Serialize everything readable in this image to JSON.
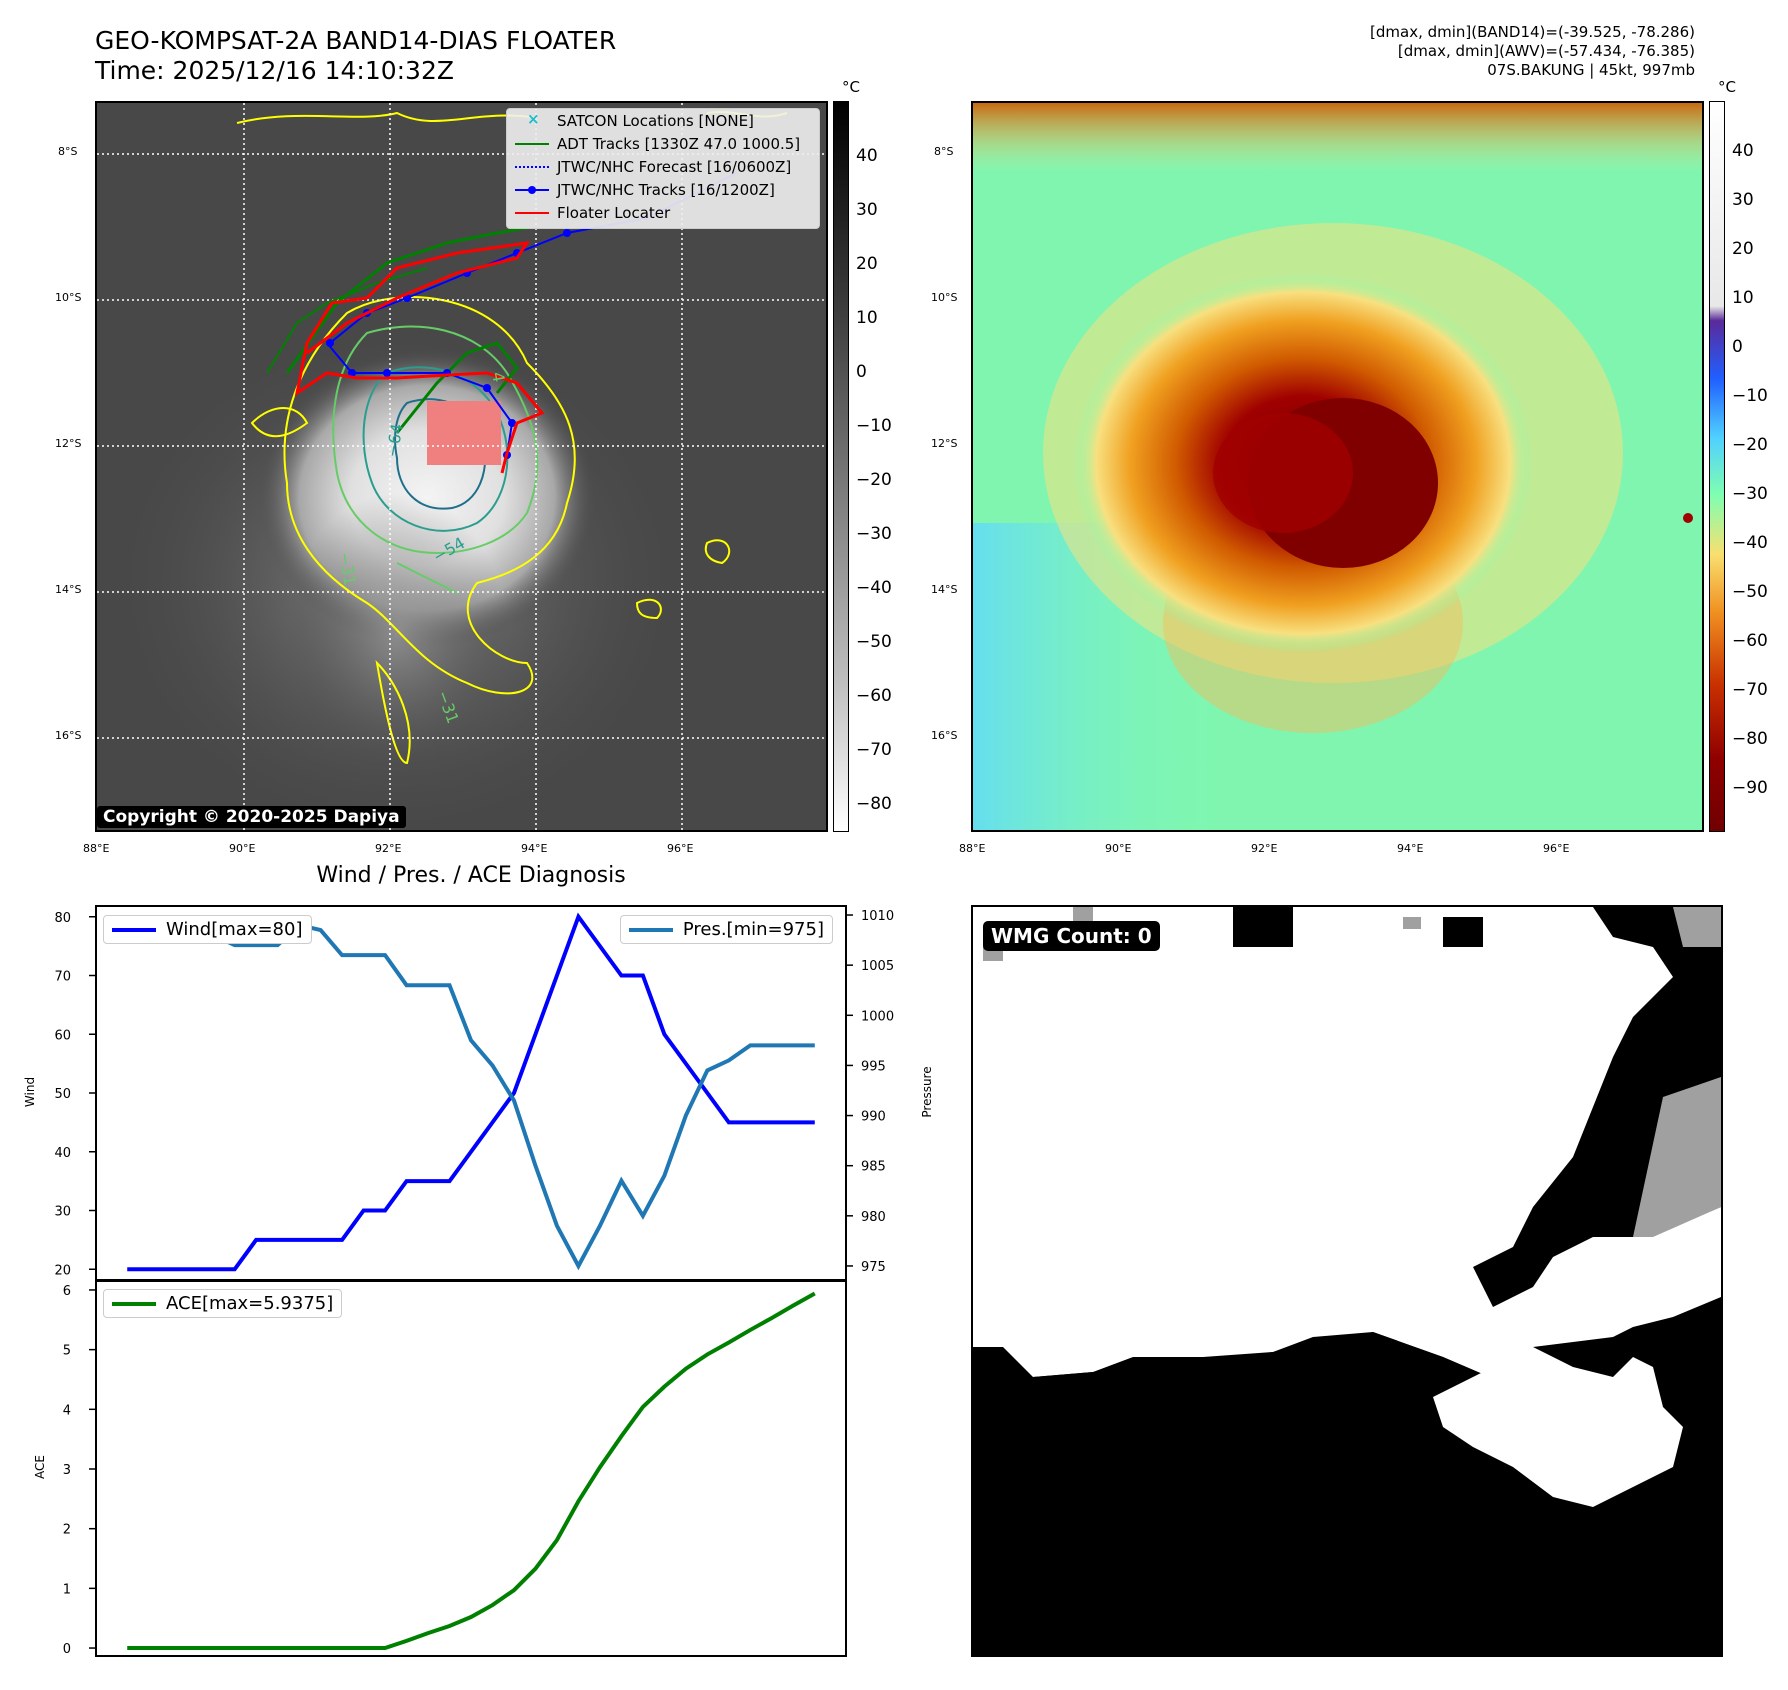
{
  "header": {
    "title_line1": "GEO-KOMPSAT-2A BAND14-DIAS FLOATER",
    "title_line2": "Time: 2025/12/16 14:10:32Z",
    "info_line1": "[dmax, dmin](BAND14)=(-39.525, -78.286)",
    "info_line2": "[dmax, dmin](AWV)=(-57.434, -76.385)",
    "info_line3": "07S.BAKUNG | 45kt, 997mb"
  },
  "map_left": {
    "lat_labels": [
      "8°S",
      "10°S",
      "12°S",
      "14°S",
      "16°S"
    ],
    "lon_labels": [
      "88°E",
      "90°E",
      "92°E",
      "94°E",
      "96°E"
    ],
    "colorbar_unit": "°C",
    "colorbar_ticks": [
      "40",
      "30",
      "20",
      "10",
      "0",
      "−10",
      "−20",
      "−30",
      "−40",
      "−50",
      "−60",
      "−70",
      "−80"
    ],
    "copyright": "Copyright © 2020-2025 Dapiya",
    "contour_labels": [
      "−64",
      "−54",
      "−31",
      "−31",
      "4"
    ],
    "legend": [
      {
        "label": "SATCON Locations [NONE]",
        "color": "#17becf",
        "icon": "x-marker-icon"
      },
      {
        "label": "ADT Tracks [1330Z 47.0 1000.5]",
        "color": "#008000",
        "icon": "solid-line-icon"
      },
      {
        "label": "JTWC/NHC Forecast [16/0600Z]",
        "color": "#0000ff",
        "icon": "dotted-line-icon"
      },
      {
        "label": "JTWC/NHC Tracks [16/1200Z]",
        "color": "#0000ff",
        "icon": "dot-line-icon"
      },
      {
        "label": "Floater Locater",
        "color": "#ff0000",
        "icon": "solid-line-icon"
      }
    ]
  },
  "map_right": {
    "lat_labels": [
      "8°S",
      "10°S",
      "12°S",
      "14°S",
      "16°S"
    ],
    "lon_labels": [
      "88°E",
      "90°E",
      "92°E",
      "94°E",
      "96°E"
    ],
    "colorbar_unit": "°C",
    "colorbar_ticks": [
      "40",
      "30",
      "20",
      "10",
      "0",
      "−10",
      "−20",
      "−30",
      "−40",
      "−50",
      "−60",
      "−70",
      "−80",
      "−90"
    ]
  },
  "diagnosis": {
    "title": "Wind / Pres. / ACE Diagnosis",
    "wind_legend": "Wind[max=80]",
    "pres_legend": "Pres.[min=975]",
    "ace_legend": "ACE[max=5.9375]",
    "wind_axis_label": "Wind",
    "pres_axis_label": "Pressure",
    "ace_axis_label": "ACE",
    "wind_color": "#0000ff",
    "pres_color": "#1f77b4",
    "ace_color": "#008000"
  },
  "wmg": {
    "badge": "WMG Count: 0"
  },
  "chart_data": [
    {
      "type": "line",
      "title": "Wind / Pres. / ACE Diagnosis",
      "x": [
        0,
        1,
        2,
        3,
        4,
        5,
        6,
        7,
        8,
        9,
        10,
        11,
        12,
        13,
        14,
        15,
        16,
        17,
        18,
        19,
        20,
        21,
        22,
        23,
        24,
        25,
        26,
        27,
        28,
        29,
        30,
        31,
        32
      ],
      "series": [
        {
          "name": "Wind[max=80]",
          "axis": "left",
          "values": [
            20,
            20,
            20,
            20,
            20,
            20,
            25,
            25,
            25,
            25,
            25,
            30,
            30,
            35,
            35,
            35,
            40,
            45,
            50,
            60,
            70,
            80,
            75,
            70,
            70,
            60,
            55,
            50,
            45,
            45,
            45,
            45,
            45
          ]
        },
        {
          "name": "Pres.[min=975]",
          "axis": "right",
          "values": [
            1008,
            1008,
            1008,
            1008,
            1008,
            1007,
            1007,
            1007,
            1009,
            1008.5,
            1006,
            1006,
            1006,
            1003,
            1003,
            1003,
            997.5,
            995,
            991.5,
            985,
            979,
            975,
            979,
            983.5,
            980,
            984,
            990,
            994.5,
            995.5,
            997,
            997,
            997,
            997
          ]
        }
      ],
      "ylabel": "Wind",
      "ylim": [
        18,
        82
      ],
      "y2label": "Pressure",
      "y2lim": [
        973.5,
        1011
      ]
    },
    {
      "type": "line",
      "x": [
        0,
        1,
        2,
        3,
        4,
        5,
        6,
        7,
        8,
        9,
        10,
        11,
        12,
        13,
        14,
        15,
        16,
        17,
        18,
        19,
        20,
        21,
        22,
        23,
        24,
        25,
        26,
        27,
        28,
        29,
        30,
        31,
        32
      ],
      "series": [
        {
          "name": "ACE[max=5.9375]",
          "values": [
            0,
            0,
            0,
            0,
            0,
            0,
            0,
            0,
            0,
            0,
            0,
            0,
            0.0,
            0.12,
            0.25,
            0.37,
            0.52,
            0.72,
            0.97,
            1.33,
            1.81,
            2.46,
            3.03,
            3.55,
            4.04,
            4.38,
            4.68,
            4.92,
            5.12,
            5.33,
            5.53,
            5.74,
            5.94
          ]
        }
      ],
      "ylabel": "ACE",
      "ylim": [
        -0.15,
        6.15
      ]
    }
  ]
}
